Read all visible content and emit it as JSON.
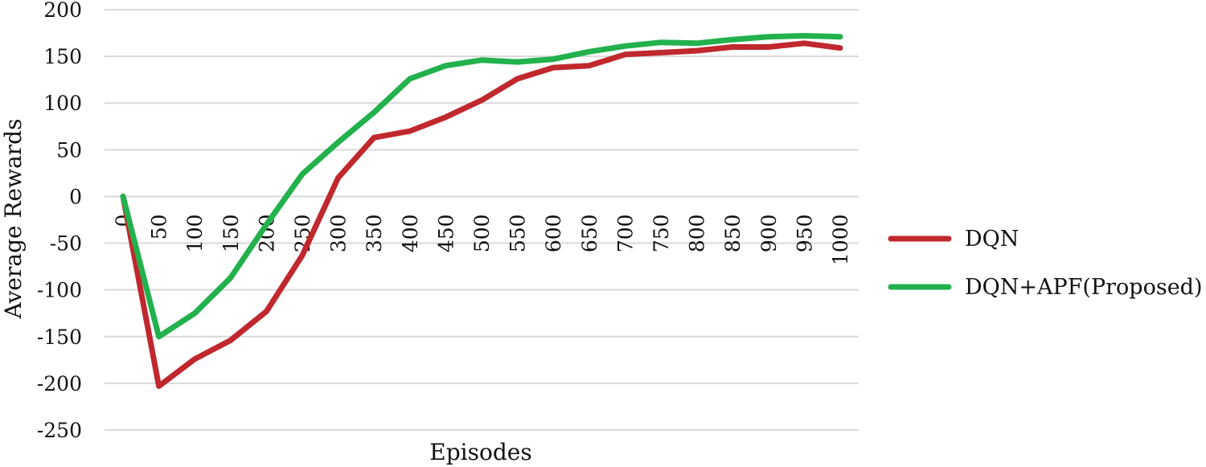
{
  "chart_data": {
    "type": "line",
    "xlabel": "Episodes",
    "ylabel": "Average Rewards",
    "ylim": [
      -250,
      200
    ],
    "yticks": [
      -250,
      -200,
      -150,
      -100,
      -50,
      0,
      50,
      100,
      150,
      200
    ],
    "x": [
      0,
      50,
      100,
      150,
      200,
      250,
      300,
      350,
      400,
      450,
      500,
      550,
      600,
      650,
      700,
      750,
      800,
      850,
      900,
      950,
      1000
    ],
    "grid": true,
    "legend_position": "right",
    "series": [
      {
        "name": "DQN",
        "color": "#c0282d",
        "values": [
          0,
          -203,
          -174,
          -154,
          -123,
          -63,
          20,
          63,
          70,
          85,
          103,
          126,
          138,
          140,
          152,
          154,
          156,
          160,
          160,
          164,
          159
        ]
      },
      {
        "name": "DQN+APF(Proposed)",
        "color": "#22b14c",
        "values": [
          0,
          -150,
          -125,
          -87,
          -30,
          24,
          58,
          90,
          126,
          140,
          146,
          144,
          147,
          155,
          161,
          165,
          164,
          168,
          171,
          172,
          171
        ]
      }
    ]
  }
}
